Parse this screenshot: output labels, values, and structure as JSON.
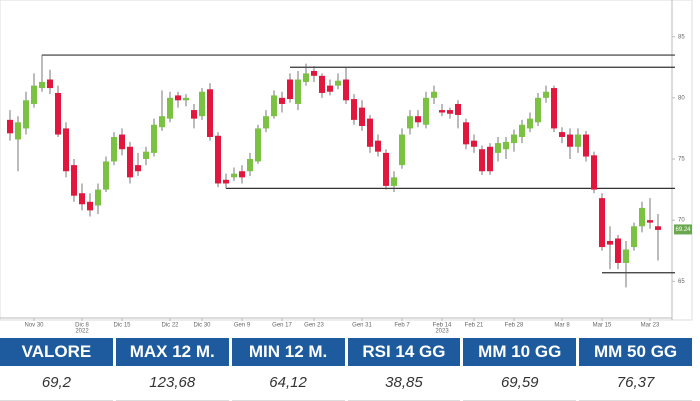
{
  "chart_data": {
    "type": "candlestick",
    "categories": [
      null,
      null,
      null,
      "Nov 30",
      null,
      null,
      null,
      null,
      null,
      "Dic 8",
      null,
      null,
      null,
      null,
      "Dic 15",
      null,
      null,
      null,
      null,
      null,
      "Dic 22",
      null,
      null,
      null,
      "Dic 30",
      null,
      null,
      null,
      null,
      "Gen 9",
      null,
      null,
      null,
      null,
      "Gen 17",
      null,
      null,
      null,
      "Gen 23",
      null,
      null,
      null,
      null,
      null,
      "Gen 31",
      null,
      null,
      null,
      null,
      "Feb 7",
      null,
      null,
      null,
      null,
      "Feb 14",
      null,
      null,
      null,
      "Feb 21",
      null,
      null,
      null,
      null,
      "Feb 28",
      null,
      null,
      null,
      null,
      null,
      "Mar 8",
      null,
      null,
      null,
      null,
      "Mar 15",
      null,
      null,
      null,
      null,
      null,
      "Mar 23",
      null
    ],
    "year_labels": [
      {
        "category": "Dic 8",
        "label": "2022"
      },
      {
        "category": "Feb 14",
        "label": "2023"
      }
    ],
    "open": [
      78.2,
      76.6,
      77.5,
      79.5,
      80.8,
      81.5,
      80.4,
      77.5,
      74.5,
      72.2,
      71.5,
      71.2,
      72.5,
      74.8,
      77.0,
      76.0,
      74.5,
      75.0,
      75.5,
      77.6,
      78.3,
      80.2,
      79.8,
      79.0,
      78.5,
      80.7,
      76.9,
      73.3,
      73.5,
      74.0,
      74.0,
      74.8,
      77.5,
      78.5,
      80.0,
      81.5,
      79.5,
      81.3,
      82.2,
      81.8,
      81.0,
      81.0,
      81.5,
      79.9,
      79.2,
      78.3,
      76.5,
      75.5,
      72.8,
      74.5,
      77.5,
      78.5,
      77.8,
      80.0,
      79.0,
      79.0,
      79.5,
      78.0,
      76.5,
      75.8,
      76.0,
      75.5,
      75.8,
      76.3,
      76.8,
      77.5,
      78.0,
      80.0,
      80.8,
      77.2,
      77.0,
      76.0,
      77.0,
      75.3,
      71.8,
      68.3,
      68.5,
      66.5,
      67.8,
      69.5,
      70.0,
      69.5
    ],
    "high": [
      79,
      78.5,
      80.5,
      82,
      83.5,
      82.3,
      81,
      78,
      75,
      73,
      72.2,
      73,
      75.2,
      77.2,
      77.5,
      76.4,
      75.5,
      76,
      78.3,
      80.6,
      80.5,
      80.5,
      80.3,
      79.5,
      80.8,
      81.2,
      77.2,
      73.8,
      74.3,
      74.5,
      75.5,
      77.8,
      79,
      80.6,
      80.5,
      82,
      82.2,
      82.8,
      82.6,
      82,
      81.5,
      82,
      82.5,
      80.3,
      79.8,
      78.6,
      77,
      75.8,
      74,
      77.5,
      79,
      79,
      80.5,
      81,
      79.5,
      79.2,
      79.8,
      78.3,
      77,
      76.1,
      76.3,
      76.8,
      76.8,
      77.4,
      78.2,
      78.8,
      80.4,
      81,
      81,
      77.6,
      77.5,
      77.5,
      77.3,
      75.6,
      72.2,
      69.5,
      68.8,
      68.3,
      69.8,
      71.5,
      71.8,
      70.5
    ],
    "low": [
      76.5,
      74,
      77,
      79.2,
      80.5,
      80.3,
      76.8,
      73.5,
      71.5,
      70.8,
      70.3,
      70.5,
      72.3,
      74.5,
      75.3,
      73,
      73.6,
      74.5,
      75.2,
      77.3,
      78,
      79.2,
      79.3,
      77.5,
      78.2,
      76.5,
      72.7,
      72.6,
      73.2,
      73,
      73.6,
      74.6,
      77.2,
      78.3,
      78.8,
      79.6,
      79,
      81,
      81.3,
      80,
      80.2,
      80.7,
      79.5,
      77.8,
      77.3,
      75.5,
      75.2,
      72.5,
      72.3,
      74.2,
      77,
      77.6,
      77.5,
      79.5,
      78.5,
      78.3,
      77.5,
      75.8,
      75.5,
      73.7,
      73.7,
      74.8,
      75,
      75.6,
      76.3,
      77.2,
      77.7,
      79.6,
      77.2,
      76.3,
      75,
      75.5,
      74.8,
      72.2,
      67.5,
      66,
      66,
      64.5,
      67.5,
      69,
      69.3,
      66.7
    ],
    "close": [
      77.1,
      78.0,
      79.8,
      81.0,
      81.3,
      80.8,
      77.0,
      74.0,
      72.0,
      71.3,
      70.8,
      72.5,
      74.8,
      76.8,
      75.8,
      73.5,
      74.0,
      75.6,
      77.8,
      78.5,
      80.0,
      79.8,
      80.0,
      78.3,
      80.5,
      76.8,
      73.0,
      73.0,
      73.8,
      73.5,
      75.0,
      77.5,
      78.5,
      80.2,
      79.5,
      79.9,
      81.5,
      82.0,
      81.8,
      80.4,
      80.5,
      81.4,
      79.8,
      78.2,
      77.7,
      76.0,
      75.6,
      72.8,
      73.5,
      77.0,
      78.5,
      78.0,
      80.0,
      80.5,
      78.8,
      78.7,
      78.6,
      76.2,
      76.0,
      74.0,
      74.0,
      76.3,
      76.4,
      77.0,
      77.8,
      78.3,
      80.0,
      80.5,
      77.5,
      76.8,
      76.0,
      77.0,
      75.2,
      72.5,
      67.8,
      68.0,
      66.5,
      67.6,
      69.5,
      71.0,
      69.8,
      69.2
    ],
    "up_color": "#7cc242",
    "down_color": "#e3173e",
    "levels": [
      {
        "value": 83.5,
        "start": 4
      },
      {
        "value": 82.5,
        "start": 35
      },
      {
        "value": 72.6,
        "start": 27
      },
      {
        "value": 65.7,
        "start": 74
      }
    ],
    "last_price": 69.24,
    "ylim": [
      62,
      88
    ],
    "yticks": [
      65,
      70,
      75,
      80,
      85
    ]
  },
  "table": {
    "headers": [
      "VALORE",
      "MAX 12 M.",
      "MIN 12 M.",
      "RSI 14 GG",
      "MM 10 GG",
      "MM 50 GG"
    ],
    "values": [
      "69,2",
      "123,68",
      "64,12",
      "38,85",
      "69,59",
      "76,37"
    ]
  }
}
